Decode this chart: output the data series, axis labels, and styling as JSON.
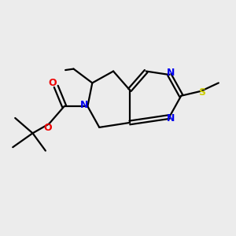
{
  "background_color": "#ececec",
  "bond_color": "#000000",
  "N_color": "#0000ee",
  "O_color": "#ee0000",
  "S_color": "#cccc00",
  "C_color": "#000000",
  "figsize": [
    3.0,
    3.0
  ],
  "dpi": 100,
  "xlim": [
    0,
    10
  ],
  "ylim": [
    0,
    10
  ],
  "lw": 1.6
}
